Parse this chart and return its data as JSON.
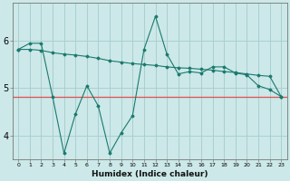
{
  "title": "",
  "xlabel": "Humidex (Indice chaleur)",
  "ylabel": "",
  "bg_color": "#cce8e8",
  "line_color": "#1a7a6e",
  "grid_color": "#aacfcf",
  "hline_color": "#e05050",
  "x_values": [
    0,
    1,
    2,
    3,
    4,
    5,
    6,
    7,
    8,
    9,
    10,
    11,
    12,
    13,
    14,
    15,
    16,
    17,
    18,
    19,
    20,
    21,
    22,
    23
  ],
  "series1": [
    5.82,
    5.95,
    5.95,
    4.82,
    3.62,
    4.45,
    5.05,
    4.62,
    3.62,
    4.05,
    4.42,
    5.82,
    6.52,
    5.72,
    5.3,
    5.35,
    5.32,
    5.45,
    5.45,
    5.32,
    5.28,
    5.05,
    4.97,
    4.82
  ],
  "series2": [
    5.82,
    5.82,
    5.8,
    5.75,
    5.72,
    5.7,
    5.67,
    5.63,
    5.58,
    5.55,
    5.52,
    5.5,
    5.48,
    5.45,
    5.43,
    5.42,
    5.4,
    5.38,
    5.35,
    5.33,
    5.3,
    5.27,
    5.25,
    4.82
  ],
  "hline_y": 4.82,
  "ylim": [
    3.5,
    6.8
  ],
  "yticks": [
    4,
    5,
    6
  ],
  "xlim": [
    -0.5,
    23.5
  ],
  "xlabel_fontsize": 6.5,
  "ytick_fontsize": 7,
  "xtick_fontsize": 4.5
}
